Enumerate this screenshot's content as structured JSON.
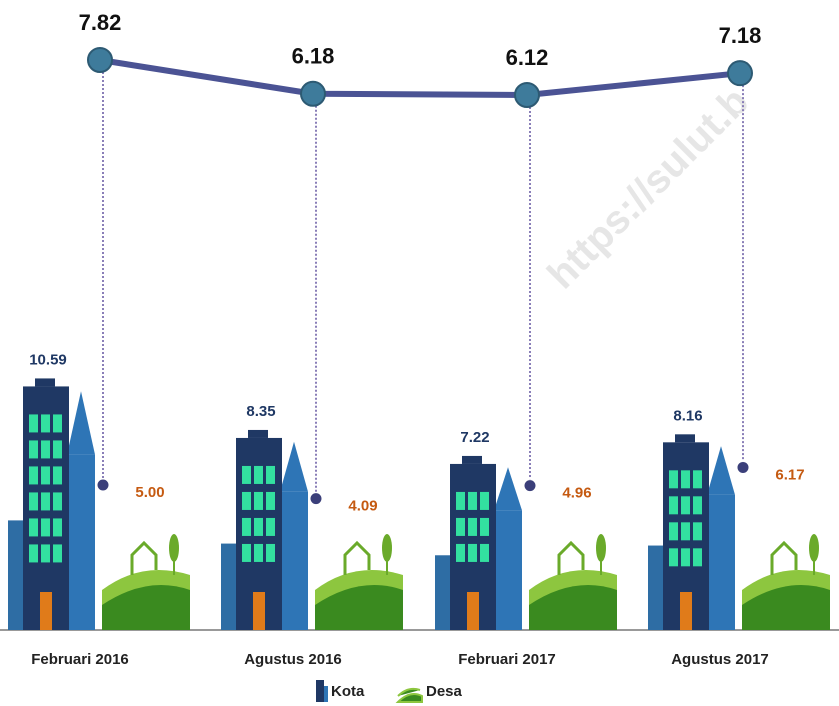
{
  "chart_data": {
    "type": "line",
    "watermark": "https://sulut.b",
    "categories": [
      "Februari 2016",
      "Agustus 2016",
      "Februari 2017",
      "Agustus 2017"
    ],
    "series": [
      {
        "values": [
          7.82,
          6.18,
          6.12,
          7.18
        ],
        "color": "#4b5394"
      },
      {
        "name": "Kota",
        "values": [
          10.59,
          8.35,
          7.22,
          8.16
        ],
        "color": "#1f3864"
      },
      {
        "name": "Desa",
        "values": [
          5.0,
          4.09,
          4.96,
          6.17
        ],
        "value_labels": [
          "5.00",
          "4.09",
          "4.96",
          "6.17"
        ],
        "color": "#c55a11"
      }
    ]
  }
}
